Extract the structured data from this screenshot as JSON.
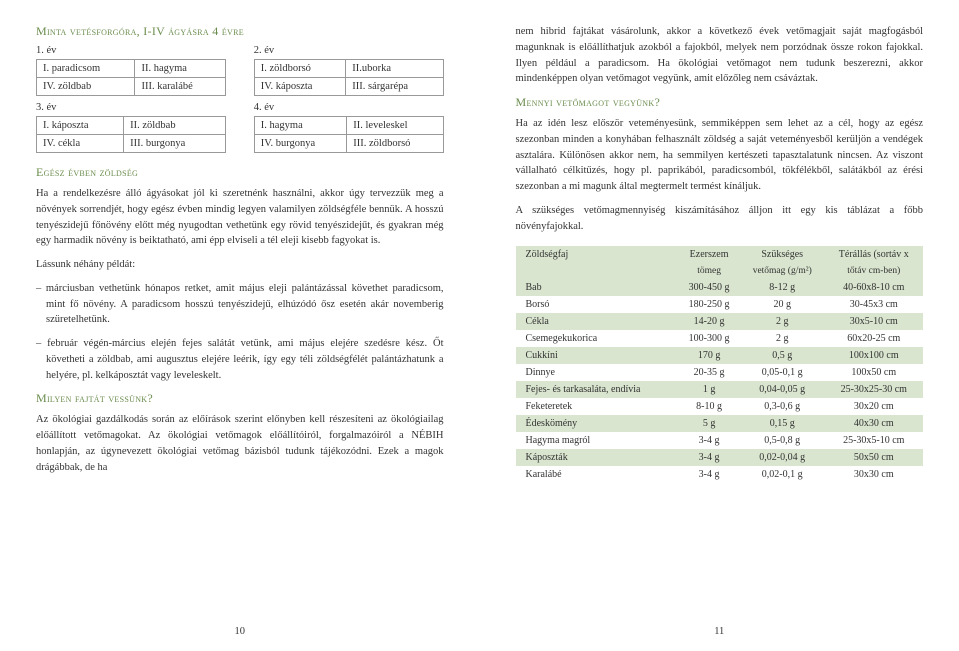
{
  "left": {
    "title": "Minta vetésforgóra, I-IV ágyásra 4 évre",
    "years": [
      {
        "label": "1. év",
        "cells": [
          "I. paradicsom",
          "II. hagyma",
          "IV. zöldbab",
          "III. karalábé"
        ]
      },
      {
        "label": "2. év",
        "cells": [
          "I. zöldborsó",
          "II.uborka",
          "IV. káposzta",
          "III. sárgarépa"
        ]
      },
      {
        "label": "3. év",
        "cells": [
          "I. káposzta",
          "II. zöldbab",
          "IV. cékla",
          "III. burgonya"
        ]
      },
      {
        "label": "4. év",
        "cells": [
          "I. hagyma",
          "II. leveleskel",
          "IV. burgonya",
          "III. zöldborsó"
        ]
      }
    ],
    "h2": "Egész évben zöldség",
    "p1": "Ha a rendelkezésre álló ágyásokat jól ki szeretnénk használni, akkor úgy tervezzük meg a növények sorrendjét, hogy egész évben mindig legyen valamilyen zöldségféle bennük. A hosszú tenyészidejű főnövény előtt még nyugodtan vethetünk egy rövid tenyészidejűt, és gyakran még egy harmadik növény is beiktatható, ami épp elviseli a tél eleji kisebb fagyokat is.",
    "p2": "Lássunk néhány példát:",
    "li1": "– márciusban vethetünk hónapos retket, amit május eleji palántázással követhet paradicsom, mint fő növény. A paradicsom hosszú tenyészidejű, elhúzódó ősz esetén akár novemberig szüretelhetünk.",
    "li2": "– február végén-március elején fejes salátát vetünk, ami május elejére szedésre kész. Őt követheti a zöldbab, ami augusztus elejére leérik, így egy téli zöldségfélét palántázhatunk a helyére, pl. kelkáposztát vagy leveleskelt.",
    "h3": "Milyen fajtát vessünk?",
    "p3": "Az ökológiai gazdálkodás során az előírások szerint előnyben kell részesíteni az ökológiailag előállított vetőmagokat. Az ökológiai vetőmagok előállítóiról, forgalmazóiról a NÉBIH honlapján, az úgynevezett ökológiai vetőmag bázisból tudunk tájékozódni. Ezek a magok drágábbak, de ha",
    "num": "10"
  },
  "right": {
    "p1": "nem hibrid fajtákat vásárolunk, akkor a következő évek vetőmagjait saját magfogásból magunknak is előállíthatjuk azokból a fajokból, melyek nem porzódnak össze rokon fajokkal. Ilyen például a paradicsom. Ha ökológiai vetőmagot nem tudunk beszerezni, akkor mindenképpen olyan vetőmagot vegyünk, amit előzőleg nem csáváztak.",
    "h1": "Mennyi vetőmagot vegyünk?",
    "p2": "Ha az idén lesz először veteményesünk, semmiképpen sem lehet az a cél, hogy az egész szezonban minden a konyhában felhasznált zöldség a saját veteményesből kerüljön a vendégek asztalára. Különösen akkor nem, ha semmilyen kertészeti tapasztalatunk nincsen. Az viszont vállalható célkitűzés, hogy pl. paprikából, paradicsomból, tökfélékből, salátákból az érési szezonban a mi magunk által megtermelt termést kínáljuk.",
    "p3": "A szükséges vetőmagmennyiség kiszámításához álljon itt egy kis táblázat a főbb növényfajokkal.",
    "thead": [
      "Zöldségfaj",
      "Ezerszem",
      "Szükséges",
      "Térállás (sortáv x"
    ],
    "thead2": [
      "",
      "tömeg",
      "vetőmag (g/m²)",
      "tőtáv cm-ben)"
    ],
    "rows": [
      [
        "Bab",
        "300-450 g",
        "8-12 g",
        "40-60x8-10 cm"
      ],
      [
        "Borsó",
        "180-250 g",
        "20 g",
        "30-45x3 cm"
      ],
      [
        "Cékla",
        "14-20 g",
        "2 g",
        "30x5-10 cm"
      ],
      [
        "Csemegekukorica",
        "100-300 g",
        "2 g",
        "60x20-25 cm"
      ],
      [
        "Cukkíni",
        "170 g",
        "0,5 g",
        "100x100 cm"
      ],
      [
        "Dinnye",
        "20-35 g",
        "0,05-0,1 g",
        "100x50 cm"
      ],
      [
        "Fejes- és tarkasaláta, endívia",
        "1 g",
        "0,04-0,05 g",
        "25-30x25-30 cm"
      ],
      [
        "Feketeretek",
        "8-10 g",
        "0,3-0,6 g",
        "30x20 cm"
      ],
      [
        "Édeskömény",
        "5 g",
        "0,15 g",
        "40x30 cm"
      ],
      [
        "Hagyma magról",
        "3-4 g",
        "0,5-0,8 g",
        "25-30x5-10 cm"
      ],
      [
        "Káposzták",
        "3-4 g",
        "0,02-0,04 g",
        "50x50 cm"
      ],
      [
        "Karalábé",
        "3-4 g",
        "0,02-0,1 g",
        "30x30 cm"
      ]
    ],
    "num": "11"
  }
}
